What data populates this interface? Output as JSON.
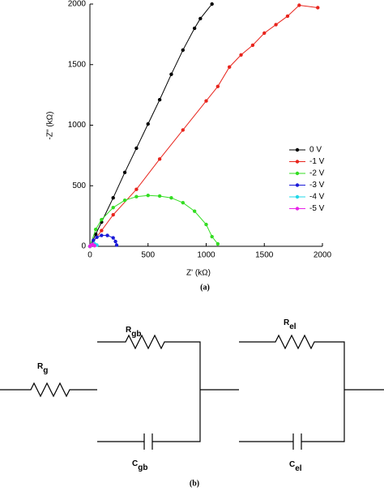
{
  "chart_data": {
    "type": "line",
    "x_label": "Z' (kΩ)",
    "y_label": "-Z\" (kΩ)",
    "caption": "(a)",
    "xlim": [
      0,
      2000
    ],
    "ylim": [
      0,
      2000
    ],
    "xticks": [
      0,
      500,
      1000,
      1500,
      2000
    ],
    "yticks": [
      0,
      500,
      1000,
      1500,
      2000
    ],
    "series": [
      {
        "name": "0 V",
        "color": "#000000",
        "x": [
          0,
          50,
          100,
          200,
          300,
          400,
          500,
          600,
          700,
          800,
          900,
          950,
          1050
        ],
        "values": [
          0,
          100,
          200,
          400,
          610,
          810,
          1010,
          1210,
          1420,
          1620,
          1800,
          1880,
          2000
        ]
      },
      {
        "name": "-1 V",
        "color": "#e8241c",
        "x": [
          0,
          100,
          200,
          400,
          600,
          800,
          1000,
          1100,
          1200,
          1300,
          1400,
          1500,
          1600,
          1700,
          1800,
          1960
        ],
        "values": [
          0,
          130,
          260,
          470,
          720,
          960,
          1200,
          1320,
          1480,
          1580,
          1660,
          1760,
          1830,
          1900,
          1990,
          1970
        ]
      },
      {
        "name": "-2 V",
        "color": "#33dd22",
        "x": [
          0,
          50,
          100,
          200,
          300,
          400,
          500,
          600,
          700,
          800,
          900,
          1000,
          1050,
          1100
        ],
        "values": [
          0,
          140,
          220,
          320,
          380,
          410,
          420,
          415,
          400,
          360,
          290,
          180,
          80,
          20
        ]
      },
      {
        "name": "-3 V",
        "color": "#1a1ad8",
        "x": [
          0,
          30,
          60,
          100,
          150,
          200,
          220,
          230
        ],
        "values": [
          0,
          50,
          75,
          90,
          90,
          70,
          40,
          10
        ]
      },
      {
        "name": "-4 V",
        "color": "#22d8e8",
        "x": [
          0,
          20,
          40,
          60
        ],
        "values": [
          0,
          15,
          20,
          10
        ]
      },
      {
        "name": "-5 V",
        "color": "#e822e8",
        "x": [
          0,
          10,
          25,
          40
        ],
        "values": [
          0,
          10,
          15,
          5
        ]
      }
    ]
  },
  "circuit": {
    "caption": "(b)",
    "labels": [
      {
        "main": "R",
        "sub": "g"
      },
      {
        "main": "R",
        "sub": "gb"
      },
      {
        "main": "C",
        "sub": "gb"
      },
      {
        "main": "R",
        "sub": "el"
      },
      {
        "main": "C",
        "sub": "el"
      }
    ]
  }
}
